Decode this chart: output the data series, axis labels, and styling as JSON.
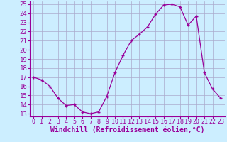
{
  "x": [
    0,
    1,
    2,
    3,
    4,
    5,
    6,
    7,
    8,
    9,
    10,
    11,
    12,
    13,
    14,
    15,
    16,
    17,
    18,
    19,
    20,
    21,
    22,
    23
  ],
  "y": [
    17.0,
    16.7,
    16.0,
    14.7,
    13.9,
    14.0,
    13.2,
    13.0,
    13.2,
    14.9,
    17.5,
    19.4,
    21.0,
    21.7,
    22.5,
    23.9,
    24.9,
    25.0,
    24.7,
    22.7,
    23.7,
    17.5,
    15.7,
    14.7
  ],
  "xlabel": "Windchill (Refroidissement éolien,°C)",
  "xlim": [
    -0.5,
    23.5
  ],
  "ylim": [
    12.7,
    25.3
  ],
  "yticks": [
    13,
    14,
    15,
    16,
    17,
    18,
    19,
    20,
    21,
    22,
    23,
    24,
    25
  ],
  "xticks": [
    0,
    1,
    2,
    3,
    4,
    5,
    6,
    7,
    8,
    9,
    10,
    11,
    12,
    13,
    14,
    15,
    16,
    17,
    18,
    19,
    20,
    21,
    22,
    23
  ],
  "line_color": "#990099",
  "marker": "+",
  "bg_color": "#cceeff",
  "grid_color": "#aaaacc",
  "tick_color": "#990099",
  "label_color": "#990099",
  "font_size": 6.5,
  "xlabel_fontsize": 7.0
}
